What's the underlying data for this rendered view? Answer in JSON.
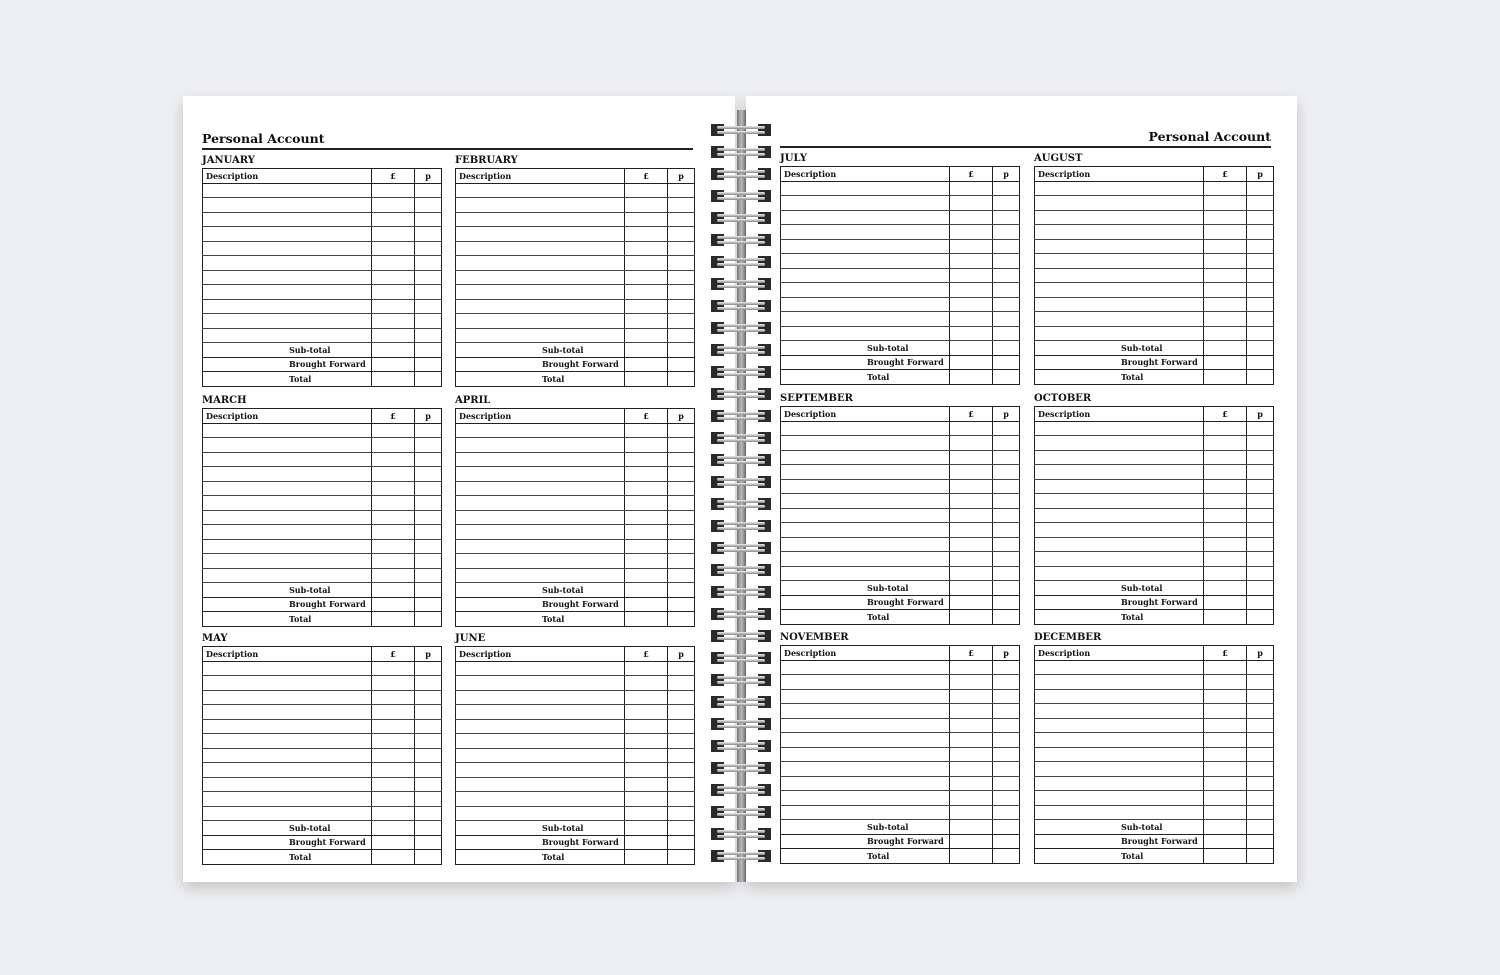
{
  "left_page": {
    "title": "Personal Account"
  },
  "right_page": {
    "title": "Personal Account"
  },
  "table_columns": {
    "description": "Description",
    "pounds": "£",
    "pence": "p"
  },
  "footer_rows": [
    "Sub-total",
    "Brought Forward",
    "Total"
  ],
  "months_left": [
    "JANUARY",
    "FEBRUARY",
    "MARCH",
    "APRIL",
    "MAY",
    "JUNE"
  ],
  "months_right": [
    "JULY",
    "AUGUST",
    "SEPTEMBER",
    "OCTOBER",
    "NOVEMBER",
    "DECEMBER"
  ]
}
